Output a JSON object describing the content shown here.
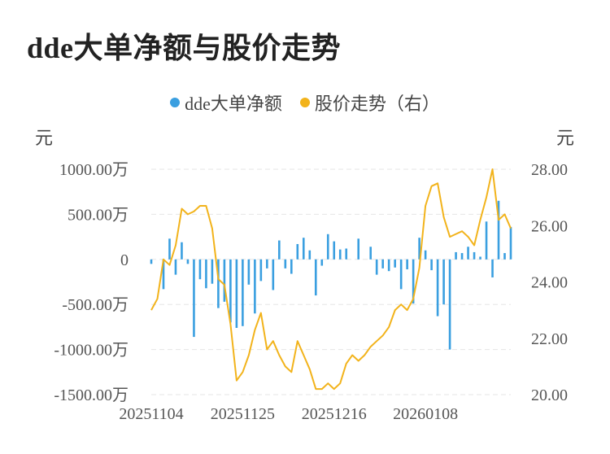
{
  "title": "dde大单净额与股价走势",
  "colors": {
    "bar": "#3A9FE0",
    "line": "#F2B31B",
    "grid": "#E5E5E5"
  },
  "chart_data": {
    "type": "bar+line",
    "title": "dde大单净额与股价走势",
    "left_unit": "元",
    "right_unit": "元",
    "legend_position": "top-center",
    "grid": true,
    "left_ticks": [
      "1000.00万",
      "500.00万",
      "0",
      "-500.00万",
      "-1000.00万",
      "-1500.00万"
    ],
    "right_ticks": [
      "28.00",
      "26.00",
      "24.00",
      "22.00",
      "20.00"
    ],
    "x_tick_labels": [
      {
        "index": 0,
        "label": "20251104"
      },
      {
        "index": 15,
        "label": "20251125"
      },
      {
        "index": 30,
        "label": "20251216"
      },
      {
        "index": 45,
        "label": "20260108"
      }
    ],
    "y_left_range": [
      -1500,
      1000
    ],
    "y_right_range": [
      20,
      28
    ],
    "series": [
      {
        "name": "dde大单净额",
        "type": "bar",
        "axis": "left",
        "unit": "万元",
        "values": [
          -50,
          0,
          -330,
          230,
          -170,
          190,
          -50,
          -860,
          -220,
          -320,
          -270,
          -540,
          -470,
          -700,
          -760,
          -740,
          -280,
          -600,
          -240,
          -100,
          -340,
          210,
          -100,
          -160,
          170,
          240,
          100,
          -400,
          -70,
          280,
          200,
          110,
          120,
          0,
          230,
          0,
          140,
          -170,
          -100,
          -130,
          -90,
          -330,
          -110,
          -490,
          240,
          100,
          -120,
          -630,
          -500,
          -1000,
          80,
          70,
          140,
          80,
          30,
          420,
          -200,
          650,
          70,
          360
        ]
      },
      {
        "name": "股价走势（右）",
        "type": "line",
        "axis": "right",
        "unit": "元",
        "values": [
          23.0,
          23.4,
          24.8,
          24.6,
          25.3,
          26.6,
          26.4,
          26.5,
          26.7,
          26.7,
          25.9,
          24.1,
          23.9,
          22.5,
          20.5,
          20.8,
          21.4,
          22.3,
          22.9,
          21.6,
          21.9,
          21.4,
          21.0,
          20.8,
          21.9,
          21.4,
          20.9,
          20.2,
          20.2,
          20.4,
          20.2,
          20.4,
          21.1,
          21.4,
          21.2,
          21.4,
          21.7,
          21.9,
          22.1,
          22.4,
          23.0,
          23.2,
          23.0,
          23.4,
          24.5,
          26.7,
          27.4,
          27.5,
          26.3,
          25.6,
          25.7,
          25.8,
          25.6,
          25.3,
          26.2,
          27.0,
          28.0,
          26.2,
          26.4,
          25.9
        ]
      }
    ]
  }
}
